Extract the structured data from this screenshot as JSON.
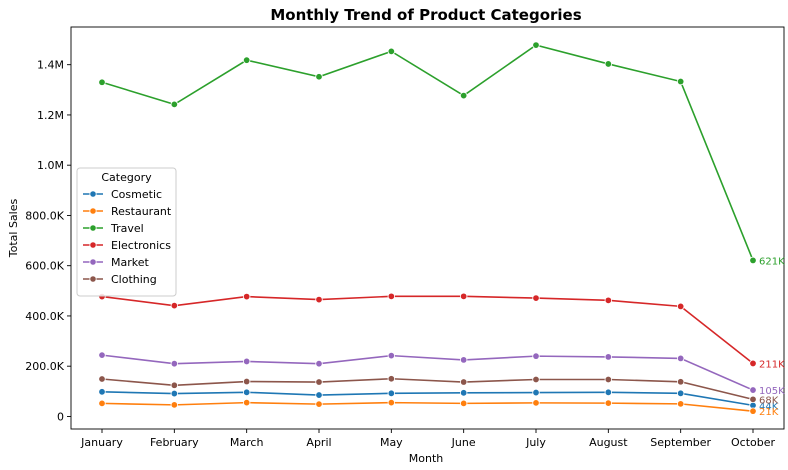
{
  "chart_data": {
    "type": "line",
    "title": "Monthly Trend of Product Categories",
    "xlabel": "Month",
    "ylabel": "Total Sales",
    "categories": [
      "January",
      "February",
      "March",
      "April",
      "May",
      "June",
      "July",
      "August",
      "September",
      "October"
    ],
    "ylim": [
      -50000,
      1550000
    ],
    "y_ticks": [
      0,
      200000,
      400000,
      600000,
      800000,
      1000000,
      1200000,
      1400000
    ],
    "y_tick_labels": [
      "0",
      "200.0K",
      "400.0K",
      "600.0K",
      "800.0K",
      "1.0M",
      "1.2M",
      "1.4M"
    ],
    "grid": false,
    "legend": {
      "title": "Category",
      "placement": "center-left"
    },
    "series": [
      {
        "name": "Cosmetic",
        "color": "#1f77b4",
        "values": [
          98000,
          91000,
          96000,
          85000,
          92000,
          94000,
          95000,
          96000,
          92000,
          44000
        ],
        "end_label": "44K"
      },
      {
        "name": "Restaurant",
        "color": "#ff7f0e",
        "values": [
          52000,
          46000,
          55000,
          49000,
          55000,
          52000,
          54000,
          53000,
          50000,
          21000
        ],
        "end_label": "21K"
      },
      {
        "name": "Travel",
        "color": "#2ca02c",
        "values": [
          1330000,
          1242000,
          1418000,
          1352000,
          1453000,
          1277000,
          1478000,
          1403000,
          1333000,
          621000
        ],
        "end_label": "621K"
      },
      {
        "name": "Electronics",
        "color": "#d62728",
        "values": [
          477000,
          441000,
          477000,
          465000,
          478000,
          478000,
          471000,
          462000,
          438000,
          211000
        ],
        "end_label": "211K"
      },
      {
        "name": "Market",
        "color": "#9467bd",
        "values": [
          244000,
          210000,
          219000,
          210000,
          242000,
          225000,
          240000,
          237000,
          231000,
          105000
        ],
        "end_label": "105K"
      },
      {
        "name": "Clothing",
        "color": "#8c564b",
        "values": [
          149000,
          124000,
          139000,
          137000,
          150000,
          137000,
          147000,
          147000,
          138000,
          68000
        ],
        "end_label": "68K"
      }
    ]
  }
}
